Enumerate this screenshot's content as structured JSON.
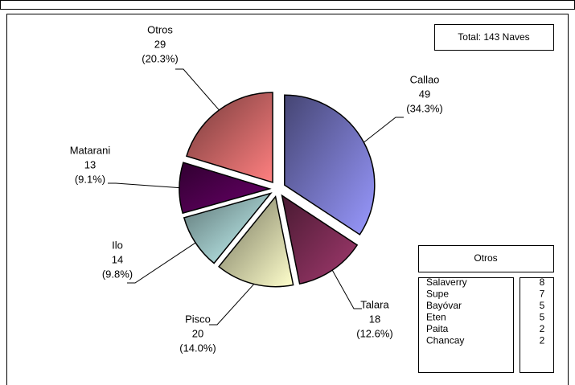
{
  "chart_data": {
    "type": "pie",
    "annotation": "Total: 143 Naves",
    "categories": [
      "Callao",
      "Talara",
      "Pisco",
      "Ilo",
      "Matarani",
      "Otros"
    ],
    "values": [
      49,
      18,
      20,
      14,
      13,
      29
    ],
    "percent_labels": [
      "(34.3%)",
      "(12.6%)",
      "(14.0%)",
      "(9.8%)",
      "(9.1%)",
      "(20.3%)"
    ],
    "colors": [
      "#9999ff",
      "#a33a6f",
      "#ffffcc",
      "#ccffff",
      "#6a006a",
      "#ff8080"
    ]
  },
  "table": {
    "title": "Otros",
    "rows": [
      [
        "Salaverry",
        8
      ],
      [
        "Supe",
        7
      ],
      [
        "Bayóvar",
        5
      ],
      [
        "Eten",
        5
      ],
      [
        "Paita",
        2
      ],
      [
        "Chancay",
        2
      ]
    ]
  }
}
